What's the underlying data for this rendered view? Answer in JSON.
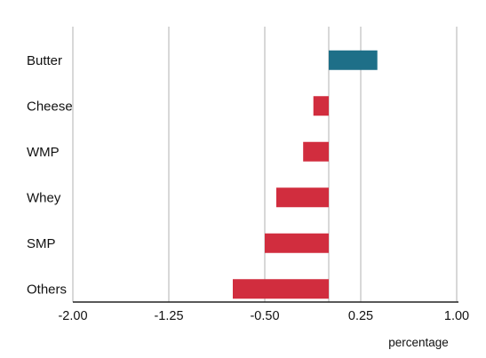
{
  "chart_data": {
    "type": "bar",
    "orientation": "horizontal",
    "categories": [
      "Butter",
      "Cheese",
      "WMP",
      "Whey",
      "SMP",
      "Others"
    ],
    "values": [
      0.38,
      -0.12,
      -0.2,
      -0.41,
      -0.5,
      -0.75
    ],
    "xlabel": "percentage",
    "ylabel": "",
    "xlim": [
      -2.0,
      1.0
    ],
    "xticks": [
      "-2.00",
      "-1.25",
      "-0.50",
      "0.25",
      "1.00"
    ],
    "grid": "vertical",
    "colors": {
      "positive": "#1e6f88",
      "negative": "#d12d3e"
    }
  }
}
